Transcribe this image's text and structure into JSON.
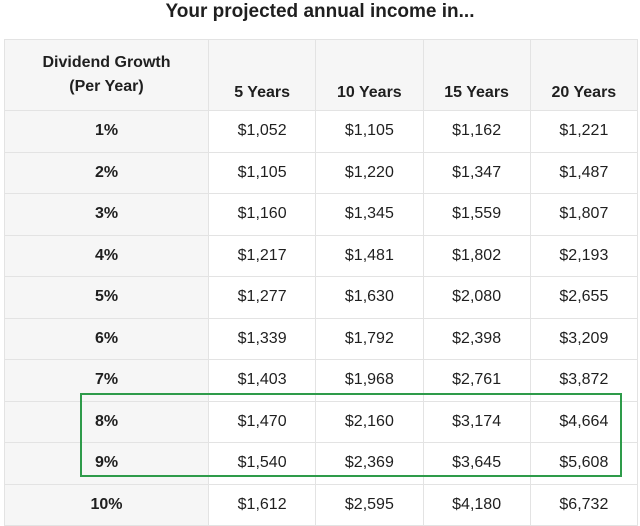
{
  "title": "Your projected annual income in...",
  "header": {
    "col0_line1": "Dividend Growth",
    "col0_line2": "(Per Year)",
    "years": [
      "5 Years",
      "10 Years",
      "15 Years",
      "20 Years"
    ]
  },
  "rows": [
    {
      "rate": "1%",
      "values": [
        "$1,052",
        "$1,105",
        "$1,162",
        "$1,221"
      ]
    },
    {
      "rate": "2%",
      "values": [
        "$1,105",
        "$1,220",
        "$1,347",
        "$1,487"
      ]
    },
    {
      "rate": "3%",
      "values": [
        "$1,160",
        "$1,345",
        "$1,559",
        "$1,807"
      ]
    },
    {
      "rate": "4%",
      "values": [
        "$1,217",
        "$1,481",
        "$1,802",
        "$2,193"
      ]
    },
    {
      "rate": "5%",
      "values": [
        "$1,277",
        "$1,630",
        "$2,080",
        "$2,655"
      ]
    },
    {
      "rate": "6%",
      "values": [
        "$1,339",
        "$1,792",
        "$2,398",
        "$3,209"
      ]
    },
    {
      "rate": "7%",
      "values": [
        "$1,403",
        "$1,968",
        "$2,761",
        "$3,872"
      ]
    },
    {
      "rate": "8%",
      "values": [
        "$1,470",
        "$2,160",
        "$3,174",
        "$4,664"
      ]
    },
    {
      "rate": "9%",
      "values": [
        "$1,540",
        "$2,369",
        "$3,645",
        "$5,608"
      ]
    },
    {
      "rate": "10%",
      "values": [
        "$1,612",
        "$2,595",
        "$4,180",
        "$6,732"
      ]
    }
  ],
  "highlighted_rows": [
    "8%",
    "9%"
  ],
  "colors": {
    "highlight": "#2e9b4a",
    "header_bg": "#f6f6f6",
    "border": "#e3e3e3"
  }
}
